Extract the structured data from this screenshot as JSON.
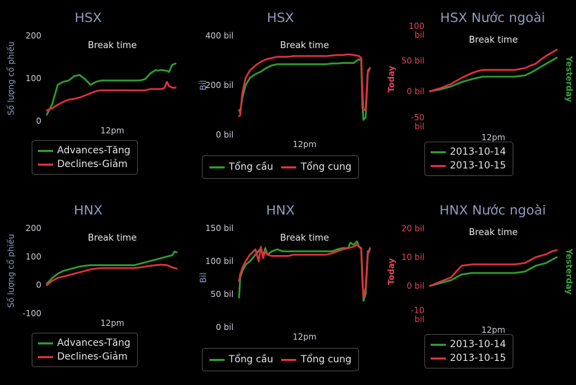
{
  "colors": {
    "green": "#2e9e2e",
    "red": "#e0303e",
    "title": "#8e9bbd",
    "background": "#000000"
  },
  "chart_data": [
    {
      "type": "line",
      "title": "HSX",
      "ylabel": "Số lượng cổ phiếu",
      "ylim": [
        0,
        200
      ],
      "yticks": [
        0,
        100,
        200
      ],
      "xlim": [
        9,
        15
      ],
      "xticks": [
        {
          "value": 12,
          "label": "12pm"
        }
      ],
      "band_label": "Break time",
      "legend_placement": "bottom",
      "series": [
        {
          "name": "Advances-Tăng",
          "color": "green",
          "x": [
            9.0,
            9.25,
            9.5,
            9.75,
            10.0,
            10.25,
            10.5,
            10.75,
            11.0,
            11.25,
            11.5,
            13.0,
            13.25,
            13.5,
            13.75,
            14.0,
            14.1,
            14.25,
            14.4,
            14.5,
            14.6,
            14.75,
            14.9
          ],
          "values": [
            15,
            40,
            85,
            92,
            95,
            105,
            108,
            98,
            85,
            92,
            95,
            95,
            95,
            98,
            112,
            120,
            118,
            120,
            118,
            118,
            115,
            132,
            135
          ]
        },
        {
          "name": "Declines-Giảm",
          "color": "red",
          "x": [
            9.0,
            9.25,
            9.5,
            9.75,
            10.0,
            10.25,
            10.5,
            10.75,
            11.0,
            11.25,
            11.5,
            13.0,
            13.25,
            13.5,
            13.75,
            14.0,
            14.25,
            14.4,
            14.5,
            14.6,
            14.75,
            14.9
          ],
          "values": [
            25,
            30,
            38,
            45,
            50,
            52,
            55,
            60,
            65,
            70,
            72,
            72,
            72,
            72,
            75,
            75,
            75,
            78,
            92,
            82,
            78,
            78
          ]
        }
      ]
    },
    {
      "type": "line",
      "title": "HSX",
      "ylabel": "Bil",
      "ylim": [
        0,
        400
      ],
      "yticks": [
        0,
        200,
        400
      ],
      "ytick_labels": [
        "0 bil",
        "200 bil",
        "400 bil"
      ],
      "xlim": [
        9,
        15
      ],
      "xticks": [
        {
          "value": 12,
          "label": "12pm"
        }
      ],
      "band_label": "Break time",
      "legend_placement": "bottom",
      "series": [
        {
          "name": "Tổng cầu",
          "color": "green",
          "x": [
            9.0,
            9.05,
            9.15,
            9.3,
            9.5,
            9.75,
            10.0,
            10.25,
            10.5,
            10.75,
            11.0,
            11.25,
            11.5,
            13.0,
            13.25,
            13.5,
            13.75,
            14.0,
            14.25,
            14.4,
            14.5,
            14.6,
            14.65,
            14.7,
            14.8,
            14.9,
            15.0
          ],
          "values": [
            100,
            90,
            150,
            200,
            230,
            245,
            255,
            270,
            280,
            285,
            285,
            285,
            285,
            285,
            288,
            288,
            290,
            290,
            290,
            300,
            305,
            300,
            120,
            60,
            70,
            250,
            270
          ]
        },
        {
          "name": "Tổng cung",
          "color": "red",
          "x": [
            9.0,
            9.05,
            9.15,
            9.3,
            9.5,
            9.75,
            10.0,
            10.25,
            10.5,
            10.75,
            11.0,
            11.25,
            11.5,
            13.0,
            13.25,
            13.5,
            13.75,
            14.0,
            14.25,
            14.4,
            14.5,
            14.6,
            14.65,
            14.7,
            14.8,
            14.9,
            15.0
          ],
          "values": [
            75,
            80,
            170,
            230,
            260,
            280,
            295,
            305,
            310,
            315,
            315,
            315,
            318,
            318,
            320,
            322,
            322,
            325,
            322,
            320,
            318,
            310,
            180,
            100,
            100,
            260,
            270
          ]
        }
      ]
    },
    {
      "type": "line",
      "title": "HSX Nước ngoài",
      "ylabel": "Today",
      "ylabel_right": "Yesterday",
      "ylim": [
        -60,
        100
      ],
      "yticks": [
        -50,
        0,
        50,
        100
      ],
      "ytick_labels": [
        [
          "-50",
          "bil"
        ],
        [
          "0 bil"
        ],
        [
          "50 bil"
        ],
        [
          "100",
          "bil"
        ]
      ],
      "xlim": [
        9,
        15
      ],
      "xticks": [
        {
          "value": 12,
          "label": "12pm"
        }
      ],
      "band_label": "Break time",
      "legend_placement": "bottom",
      "series": [
        {
          "name": "2013-10-14",
          "color": "green",
          "x": [
            9.0,
            9.5,
            10.0,
            10.5,
            11.0,
            11.25,
            11.5,
            13.0,
            13.5,
            13.75,
            14.0,
            14.25,
            14.5,
            14.75,
            15.0
          ],
          "values": [
            0,
            3,
            8,
            15,
            20,
            22,
            24,
            24,
            26,
            30,
            35,
            40,
            45,
            50,
            55
          ]
        },
        {
          "name": "2013-10-15",
          "color": "red",
          "x": [
            9.0,
            9.5,
            10.0,
            10.5,
            11.0,
            11.25,
            11.5,
            13.0,
            13.5,
            13.75,
            14.0,
            14.25,
            14.5,
            14.75,
            15.0
          ],
          "values": [
            0,
            5,
            12,
            22,
            30,
            33,
            35,
            35,
            38,
            42,
            45,
            52,
            58,
            63,
            68
          ]
        }
      ]
    },
    {
      "type": "line",
      "title": "HNX",
      "ylabel": "Số lượng cổ phiếu",
      "ylim": [
        -100,
        200
      ],
      "yticks": [
        -100,
        0,
        100,
        200
      ],
      "xlim": [
        9,
        15
      ],
      "xticks": [
        {
          "value": 12,
          "label": "12pm"
        }
      ],
      "band_label": "Break time",
      "legend_placement": "bottom",
      "series": [
        {
          "name": "Advances-Tăng",
          "color": "green",
          "x": [
            9.0,
            9.25,
            9.5,
            9.75,
            10.0,
            10.25,
            10.5,
            10.75,
            11.0,
            11.25,
            11.5,
            13.0,
            13.25,
            13.5,
            13.75,
            14.0,
            14.25,
            14.5,
            14.75,
            14.85,
            14.95
          ],
          "values": [
            5,
            25,
            40,
            50,
            55,
            60,
            65,
            68,
            70,
            70,
            70,
            70,
            75,
            80,
            85,
            90,
            95,
            100,
            105,
            118,
            115
          ]
        },
        {
          "name": "Declines-Giảm",
          "color": "red",
          "x": [
            9.0,
            9.25,
            9.5,
            9.75,
            10.0,
            10.25,
            10.5,
            10.75,
            11.0,
            11.25,
            11.5,
            13.0,
            13.25,
            13.5,
            13.75,
            14.0,
            14.25,
            14.5,
            14.75,
            14.95
          ],
          "values": [
            0,
            15,
            25,
            30,
            35,
            40,
            45,
            50,
            55,
            58,
            60,
            60,
            62,
            65,
            68,
            70,
            72,
            70,
            62,
            58
          ]
        }
      ]
    },
    {
      "type": "line",
      "title": "HNX",
      "ylabel": "Bil",
      "ylim": [
        0,
        150
      ],
      "yticks": [
        0,
        50,
        100,
        150
      ],
      "ytick_labels": [
        "0 bil",
        "50 bil",
        "100 bil",
        "150 bil"
      ],
      "xlim": [
        9,
        15
      ],
      "xticks": [
        {
          "value": 12,
          "label": "12pm"
        }
      ],
      "band_label": "Break time",
      "legend_placement": "bottom",
      "series": [
        {
          "name": "Tổng cầu",
          "color": "green",
          "x": [
            9.0,
            9.05,
            9.15,
            9.3,
            9.5,
            9.75,
            10.0,
            10.1,
            10.2,
            10.3,
            10.5,
            10.75,
            11.0,
            11.25,
            11.5,
            13.0,
            13.25,
            13.5,
            13.75,
            14.0,
            14.1,
            14.25,
            14.4,
            14.5,
            14.6,
            14.65,
            14.7,
            14.8,
            14.9,
            15.0
          ],
          "values": [
            45,
            75,
            85,
            95,
            100,
            110,
            120,
            108,
            120,
            110,
            115,
            118,
            115,
            115,
            115,
            115,
            115,
            118,
            120,
            120,
            128,
            125,
            130,
            122,
            120,
            80,
            40,
            50,
            110,
            120
          ]
        },
        {
          "name": "Tổng cung",
          "color": "red",
          "x": [
            9.0,
            9.05,
            9.15,
            9.3,
            9.5,
            9.75,
            9.9,
            10.0,
            10.1,
            10.2,
            10.3,
            10.5,
            10.75,
            11.0,
            11.25,
            11.5,
            13.0,
            13.25,
            13.5,
            13.75,
            14.0,
            14.25,
            14.4,
            14.5,
            14.6,
            14.65,
            14.7,
            14.8,
            14.9,
            15.0
          ],
          "values": [
            70,
            80,
            90,
            100,
            110,
            118,
            100,
            122,
            105,
            115,
            110,
            108,
            108,
            108,
            108,
            110,
            110,
            112,
            115,
            118,
            120,
            122,
            125,
            122,
            118,
            70,
            45,
            60,
            115,
            118
          ]
        }
      ]
    },
    {
      "type": "line",
      "title": "HNX Nước ngoài",
      "ylabel": "Today",
      "ylabel_right": "Yesterday",
      "ylim": [
        -12,
        22
      ],
      "yticks": [
        -10,
        0,
        10,
        20
      ],
      "ytick_labels": [
        [
          "-10",
          "bil"
        ],
        [
          "0 bil"
        ],
        [
          "10 bil"
        ],
        [
          "20 bil"
        ]
      ],
      "xlim": [
        9,
        15
      ],
      "xticks": [
        {
          "value": 12,
          "label": "12pm"
        }
      ],
      "band_label": "Break time",
      "legend_placement": "bottom",
      "series": [
        {
          "name": "2013-10-14",
          "color": "green",
          "x": [
            9.0,
            9.5,
            10.0,
            10.25,
            10.5,
            11.0,
            11.5,
            13.0,
            13.5,
            13.75,
            14.0,
            14.25,
            14.5,
            14.75,
            15.0
          ],
          "values": [
            0,
            1,
            2,
            3,
            4,
            4.5,
            4.5,
            4.5,
            5,
            6,
            7,
            7.5,
            8,
            9,
            10
          ]
        },
        {
          "name": "2013-10-15",
          "color": "red",
          "x": [
            9.0,
            9.5,
            10.0,
            10.25,
            10.5,
            11.0,
            11.5,
            13.0,
            13.5,
            13.75,
            14.0,
            14.25,
            14.5,
            14.75,
            15.0
          ],
          "values": [
            0,
            1.5,
            3,
            5,
            7,
            7.5,
            7.5,
            7.5,
            8,
            9,
            10,
            10.5,
            11,
            12,
            12.5
          ]
        }
      ]
    }
  ]
}
